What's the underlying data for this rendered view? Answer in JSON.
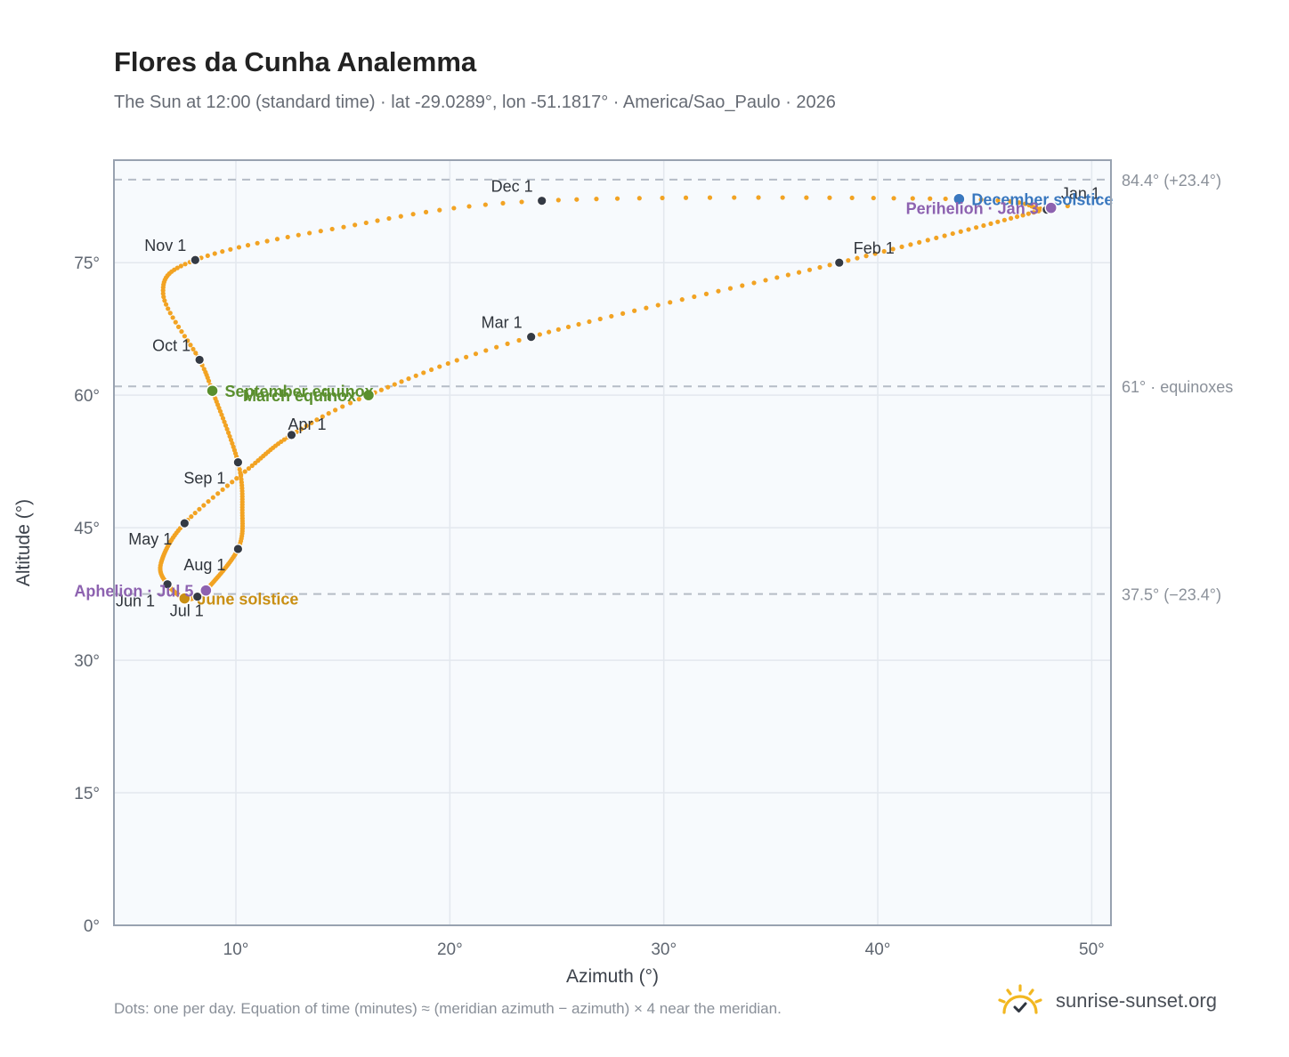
{
  "header": {
    "title": "Flores da Cunha Analemma",
    "subtitle": "The Sun at 12:00 (standard time) · lat -29.0289°, lon -51.1817° · America/Sao_Paulo · 2026"
  },
  "footer": {
    "note": "Dots: one per day. Equation of time (minutes) ≈ (meridian azimuth − azimuth) × 4 near the meridian.",
    "brand": "sunrise-sunset.org",
    "brand_icon": "sun-logo-icon"
  },
  "colors": {
    "path": "#f2a323",
    "marker": "#343a44",
    "equinox": "#5a8f2e",
    "december_solstice": "#3a78bf",
    "june_solstice": "#c98f14",
    "apsis": "#8d62b0",
    "plot_bg": "#f7fafd",
    "ref_line": "#b5bcc6"
  },
  "chart_data": {
    "type": "scatter",
    "xlabel": "Azimuth (°)",
    "ylabel": "Altitude (°)",
    "xlim": [
      4.3,
      50.9
    ],
    "ylim": [
      0,
      86.6
    ],
    "xticks": [
      10,
      20,
      30,
      40,
      50
    ],
    "xtick_labels": [
      "10°",
      "20°",
      "30°",
      "40°",
      "50°"
    ],
    "yticks": [
      0,
      15,
      30,
      45,
      60,
      75
    ],
    "ytick_labels": [
      "0°",
      "15°",
      "30°",
      "45°",
      "60°",
      "75°"
    ],
    "grid": true,
    "reference_lines": [
      {
        "y": 84.4,
        "label": "84.4° (+23.4°)"
      },
      {
        "y": 61,
        "label": "61° · equinoxes"
      },
      {
        "y": 37.5,
        "label": "37.5° (−23.4°)"
      }
    ],
    "path_waypoints": [
      {
        "day": 1,
        "x": 47.9,
        "y": 81.0
      },
      {
        "day": 3,
        "x": 48.1,
        "y": 81.2
      },
      {
        "day": 32,
        "x": 38.2,
        "y": 75.0
      },
      {
        "day": 60,
        "x": 23.8,
        "y": 66.6
      },
      {
        "day": 79,
        "x": 16.2,
        "y": 60.0
      },
      {
        "day": 91,
        "x": 12.6,
        "y": 55.5
      },
      {
        "day": 106,
        "x": 10.6,
        "y": 51.7
      },
      {
        "day": 121,
        "x": 7.6,
        "y": 45.5
      },
      {
        "day": 140,
        "x": 6.5,
        "y": 41.0
      },
      {
        "day": 152,
        "x": 6.8,
        "y": 38.6
      },
      {
        "day": 172,
        "x": 7.6,
        "y": 37.0
      },
      {
        "day": 182,
        "x": 8.2,
        "y": 37.2
      },
      {
        "day": 186,
        "x": 8.6,
        "y": 37.9
      },
      {
        "day": 213,
        "x": 10.1,
        "y": 42.6
      },
      {
        "day": 228,
        "x": 10.3,
        "y": 47.0
      },
      {
        "day": 244,
        "x": 10.1,
        "y": 52.4
      },
      {
        "day": 266,
        "x": 8.9,
        "y": 60.5
      },
      {
        "day": 274,
        "x": 8.3,
        "y": 64.0
      },
      {
        "day": 290,
        "x": 6.6,
        "y": 71.5
      },
      {
        "day": 305,
        "x": 8.1,
        "y": 75.3
      },
      {
        "day": 320,
        "x": 14.5,
        "y": 78.8
      },
      {
        "day": 335,
        "x": 24.3,
        "y": 82.0
      },
      {
        "day": 355,
        "x": 43.8,
        "y": 82.2
      },
      {
        "day": 365,
        "x": 47.6,
        "y": 81.1
      }
    ],
    "month_markers": [
      {
        "label": "Jan 1",
        "x": 47.9,
        "y": 81.0,
        "anchor": "right-above"
      },
      {
        "label": "Feb 1",
        "x": 38.2,
        "y": 75.0,
        "anchor": "right-above"
      },
      {
        "label": "Mar 1",
        "x": 23.8,
        "y": 66.6,
        "anchor": "left-above"
      },
      {
        "label": "Apr 1",
        "x": 12.6,
        "y": 55.5,
        "anchor": "left-below"
      },
      {
        "label": "May 1",
        "x": 7.6,
        "y": 45.5,
        "anchor": "left-below"
      },
      {
        "label": "Jun 1",
        "x": 6.8,
        "y": 38.6,
        "anchor": "left-below"
      },
      {
        "label": "Jul 1",
        "x": 8.2,
        "y": 37.2,
        "anchor": "left-below"
      },
      {
        "label": "Aug 1",
        "x": 10.1,
        "y": 42.6,
        "anchor": "left-below"
      },
      {
        "label": "Sep 1",
        "x": 10.1,
        "y": 52.4,
        "anchor": "left-below"
      },
      {
        "label": "Oct 1",
        "x": 8.3,
        "y": 64.0,
        "anchor": "left-above"
      },
      {
        "label": "Nov 1",
        "x": 8.1,
        "y": 75.3,
        "anchor": "left-above"
      },
      {
        "label": "Dec 1",
        "x": 24.3,
        "y": 82.0,
        "anchor": "left-above"
      }
    ],
    "special_points": [
      {
        "label": "March equinox",
        "x": 16.2,
        "y": 60.0,
        "color": "#5a8f2e",
        "label_side": "left"
      },
      {
        "label": "September equinox",
        "x": 8.9,
        "y": 60.5,
        "color": "#5a8f2e",
        "label_side": "right"
      },
      {
        "label": "December solstice",
        "x": 43.8,
        "y": 82.2,
        "color": "#3a78bf",
        "label_side": "right"
      },
      {
        "label": "June solstice",
        "x": 7.6,
        "y": 37.0,
        "color": "#c98f14",
        "label_side": "right"
      },
      {
        "label": "Perihelion · Jan 3",
        "x": 48.1,
        "y": 81.2,
        "color": "#8d62b0",
        "label_side": "left"
      },
      {
        "label": "Aphelion · Jul 5",
        "x": 8.6,
        "y": 37.9,
        "color": "#8d62b0",
        "label_side": "left"
      }
    ]
  }
}
